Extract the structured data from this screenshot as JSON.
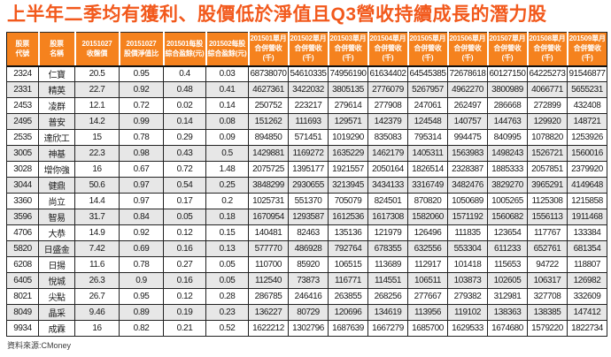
{
  "title": "上半年二季均有獲利、股價低於淨值且Q3營收持續成長的潛力股",
  "footer": {
    "source": "資料來源:CMoney"
  },
  "colors": {
    "title": "#f2591c",
    "header_bg": "#f5821e",
    "header_text": "#ffffff",
    "row_alt_bg": "#e7e7e7",
    "border": "#222222"
  },
  "table": {
    "headers": [
      "股票\n代號",
      "股票\n名稱",
      "20151027\n收盤價",
      "20151027\n股價淨值比",
      "201501每股\n綜合盈餘(元)",
      "201502每股\n綜合盈餘(元)",
      "201501單月\n合併營收(千)",
      "201502單月\n合併營收(千)",
      "201503單月\n合併營收(千)",
      "201504單月\n合併營收(千)",
      "201505單月\n合併營收(千)",
      "201506單月\n合併營收(千)",
      "201507單月\n合併營收(千)",
      "201508單月\n合併營收(千)",
      "201509單月\n合併營收(千)"
    ],
    "rows": [
      [
        "2324",
        "仁寶",
        "20.5",
        "0.95",
        "0.4",
        "0.03",
        "68738070",
        "54610335",
        "74956190",
        "61634402",
        "64545385",
        "72678618",
        "60127150",
        "64225273",
        "91546877"
      ],
      [
        "2331",
        "精英",
        "22.7",
        "0.92",
        "0.48",
        "0.41",
        "4627361",
        "3422032",
        "3805135",
        "2776079",
        "5267957",
        "4962270",
        "3800989",
        "4066771",
        "5655231"
      ],
      [
        "2453",
        "凌群",
        "12.1",
        "0.72",
        "0.02",
        "0.14",
        "250752",
        "223217",
        "279614",
        "277908",
        "247061",
        "262497",
        "286668",
        "272899",
        "432408"
      ],
      [
        "2495",
        "普安",
        "14.2",
        "0.99",
        "0.14",
        "0.08",
        "151262",
        "111693",
        "129571",
        "142379",
        "124548",
        "140757",
        "144763",
        "129920",
        "148721"
      ],
      [
        "2535",
        "達欣工",
        "15",
        "0.78",
        "0.29",
        "0.09",
        "894850",
        "571451",
        "1019290",
        "835083",
        "795314",
        "994475",
        "840995",
        "1078820",
        "1253926"
      ],
      [
        "3005",
        "神基",
        "22.3",
        "0.98",
        "0.43",
        "0.5",
        "1429881",
        "1169272",
        "1635229",
        "1462179",
        "1405311",
        "1563983",
        "1498243",
        "1526721",
        "1560016"
      ],
      [
        "3028",
        "增你強",
        "16",
        "0.67",
        "0.72",
        "1.48",
        "2075725",
        "1395177",
        "1921557",
        "2050164",
        "1826514",
        "2328387",
        "1885333",
        "2057851",
        "2379920"
      ],
      [
        "3044",
        "健鼎",
        "50.6",
        "0.97",
        "0.54",
        "0.25",
        "3848299",
        "2930655",
        "3213945",
        "3434133",
        "3316749",
        "3482476",
        "3829270",
        "3965291",
        "4149648"
      ],
      [
        "3360",
        "尚立",
        "14.4",
        "0.97",
        "0.17",
        "0.2",
        "1025731",
        "551370",
        "705079",
        "824501",
        "870820",
        "1050689",
        "1005265",
        "1125308",
        "1215858"
      ],
      [
        "3596",
        "智易",
        "31.7",
        "0.84",
        "0.05",
        "0.18",
        "1670954",
        "1293587",
        "1612536",
        "1617308",
        "1582060",
        "1571192",
        "1560682",
        "1556113",
        "1911468"
      ],
      [
        "4706",
        "大恭",
        "14.9",
        "0.92",
        "0.12",
        "0.15",
        "140481",
        "82463",
        "135136",
        "121979",
        "126496",
        "111835",
        "123654",
        "117767",
        "133384"
      ],
      [
        "5820",
        "日盛金",
        "7.42",
        "0.69",
        "0.16",
        "0.13",
        "577770",
        "486928",
        "792764",
        "678355",
        "632556",
        "553304",
        "611233",
        "652761",
        "681354"
      ],
      [
        "6208",
        "日揚",
        "11.6",
        "0.78",
        "0.27",
        "0.05",
        "110700",
        "85920",
        "106515",
        "113689",
        "112917",
        "101418",
        "115653",
        "94722",
        "118807"
      ],
      [
        "6405",
        "悅城",
        "26.3",
        "0.9",
        "0.16",
        "0.05",
        "112540",
        "73873",
        "116771",
        "114551",
        "106511",
        "103873",
        "102605",
        "106317",
        "126982"
      ],
      [
        "8021",
        "尖點",
        "26.7",
        "0.95",
        "0.12",
        "0.28",
        "286785",
        "246416",
        "263855",
        "268256",
        "277667",
        "279382",
        "312981",
        "327708",
        "332609"
      ],
      [
        "8049",
        "晶采",
        "9.46",
        "0.89",
        "0.19",
        "0.23",
        "136227",
        "80729",
        "120696",
        "134619",
        "113956",
        "119102",
        "138363",
        "138385",
        "147412"
      ],
      [
        "9934",
        "成霖",
        "16",
        "0.82",
        "0.21",
        "0.52",
        "1622212",
        "1302796",
        "1687639",
        "1667279",
        "1685700",
        "1629533",
        "1674680",
        "1579220",
        "1822734"
      ]
    ]
  }
}
